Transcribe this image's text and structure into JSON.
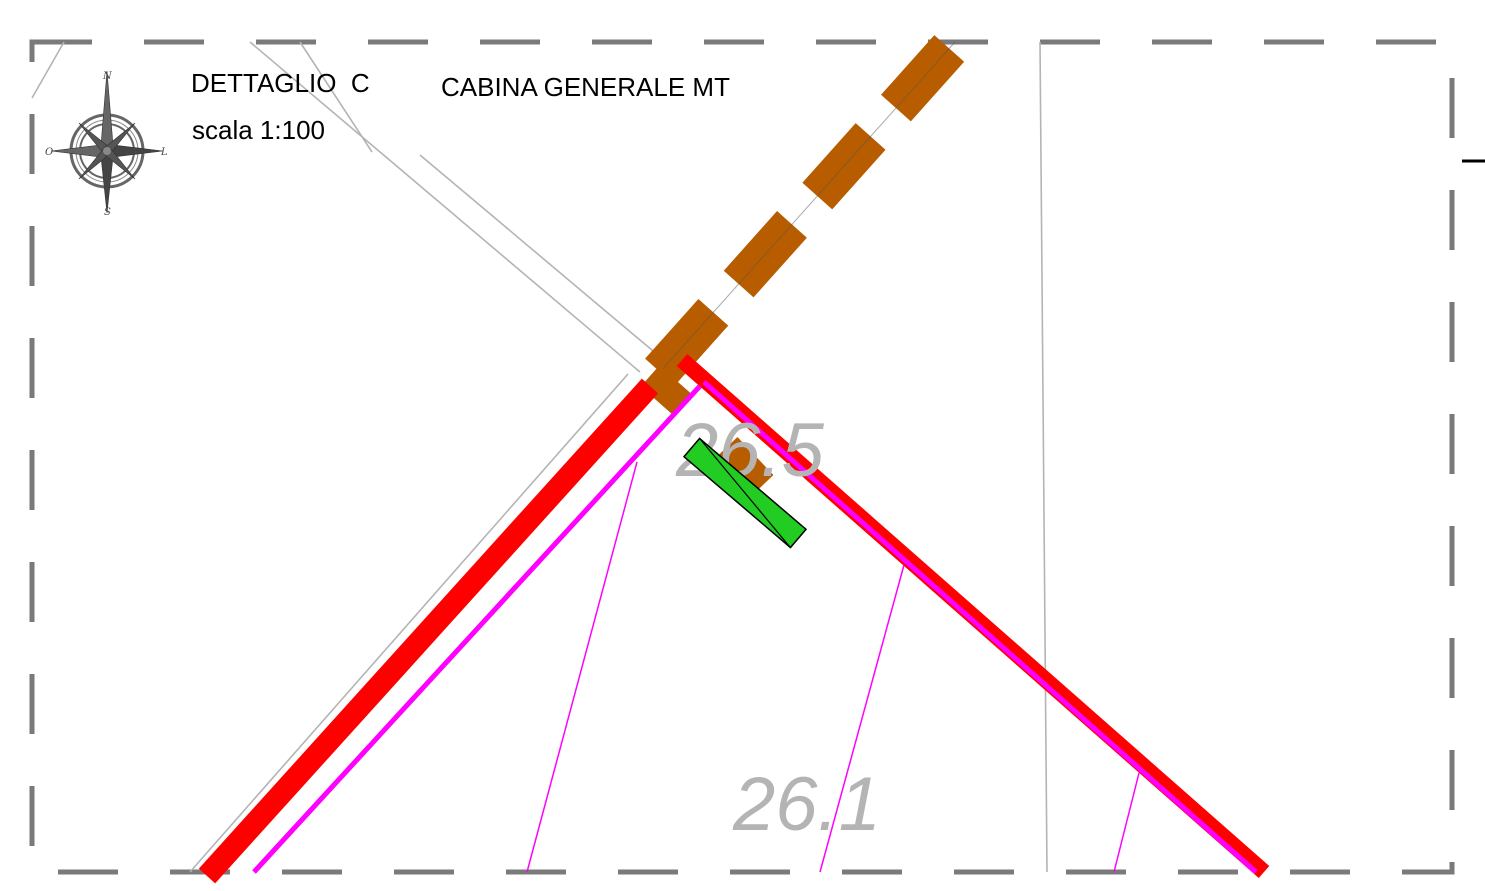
{
  "detail": {
    "title": "DETTAGLIO  C",
    "scale": "scala 1:100",
    "subject": "CABINA GENERALE MT"
  },
  "compass": {
    "north": "N",
    "south": "S",
    "east": "L",
    "west": "O",
    "icon": "compass-rose-icon"
  },
  "parcels": {
    "upper": "26.5",
    "lower": "26.1"
  },
  "colors": {
    "frame": "#7a7a7a",
    "boundary_red": "#ff0000",
    "cable_magenta": "#ff00ff",
    "conduit_brown": "#b85c00",
    "cabin_green": "#22cc22",
    "parcel_line": "#b4b4b4",
    "parcel_text": "#b4b4b4"
  }
}
